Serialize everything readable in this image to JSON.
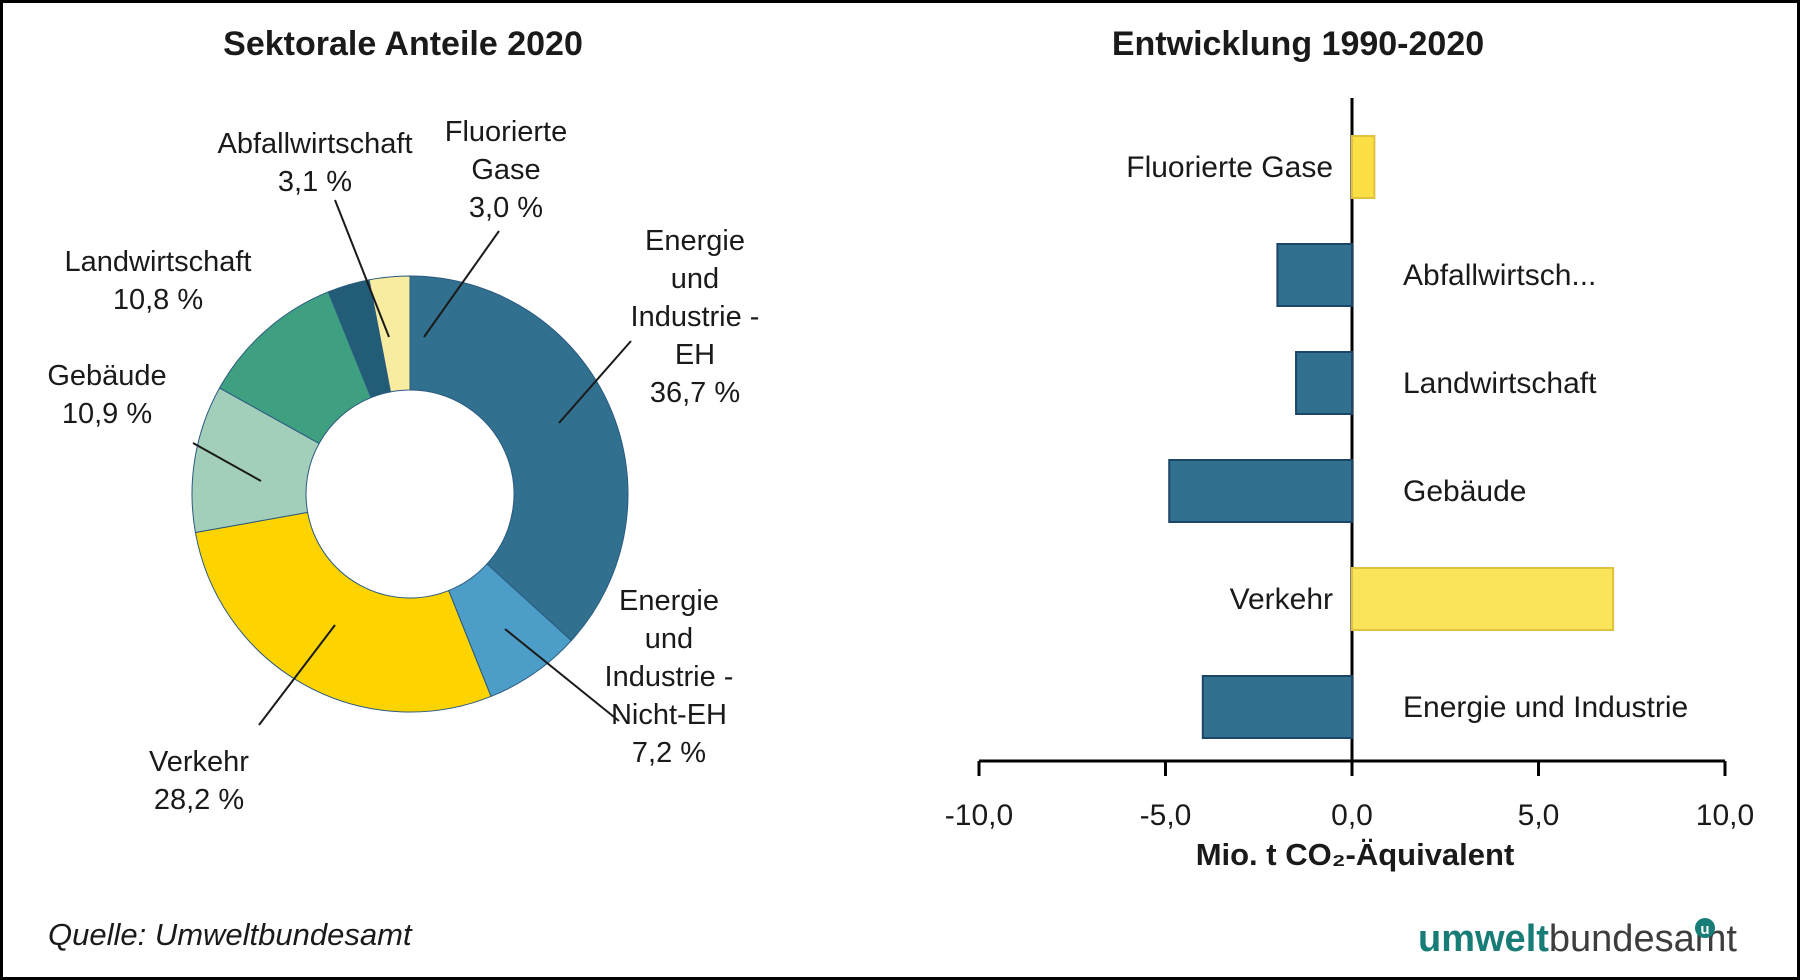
{
  "titles": {
    "left": "Sektorale Anteile 2020",
    "right": "Entwicklung 1990-2020"
  },
  "source": "Quelle: Umweltbundesamt",
  "logo": {
    "part1": "umwelt",
    "part2": "bundesamt",
    "badge": "u",
    "teal": "#177d76",
    "gray": "#3d3d3d"
  },
  "chart_data": [
    {
      "type": "pie",
      "subtype": "donut",
      "title": "Sektorale Anteile 2020",
      "unit": "%",
      "slices": [
        {
          "key": "eh",
          "label": "Energie und Industrie - EH",
          "value": 36.7,
          "pct_label": "36,7 %",
          "color": "#31708f",
          "callout_lines": [
            "Energie",
            "und",
            "Industrie -",
            "EH",
            "36,7 %"
          ]
        },
        {
          "key": "nicht_eh",
          "label": "Energie und Industrie - Nicht-EH",
          "value": 7.2,
          "pct_label": "7,2 %",
          "color": "#4c9dc8",
          "callout_lines": [
            "Energie",
            "und",
            "Industrie -",
            "Nicht-EH",
            "7,2 %"
          ]
        },
        {
          "key": "verkehr",
          "label": "Verkehr",
          "value": 28.2,
          "pct_label": "28,2 %",
          "color": "#fdd400",
          "callout_lines": [
            "Verkehr",
            "28,2 %"
          ]
        },
        {
          "key": "gebaeude",
          "label": "Gebäude",
          "value": 10.9,
          "pct_label": "10,9 %",
          "color": "#a3cfba",
          "callout_lines": [
            "Gebäude",
            "10,9 %"
          ]
        },
        {
          "key": "landwirt",
          "label": "Landwirtschaft",
          "value": 10.8,
          "pct_label": "10,8 %",
          "color": "#3fa081",
          "callout_lines": [
            "Landwirtschaft",
            "10,8 %"
          ]
        },
        {
          "key": "abfall",
          "label": "Abfallwirtschaft",
          "value": 3.1,
          "pct_label": "3,1 %",
          "color": "#235c77",
          "callout_lines": [
            "Abfallwirtschaft",
            "3,1 %"
          ]
        },
        {
          "key": "fluor",
          "label": "Fluorierte Gase",
          "value": 3.0,
          "pct_label": "3,0 %",
          "color": "#f7ec9f",
          "callout_lines": [
            "Fluorierte",
            "Gase",
            "3,0 %"
          ]
        }
      ]
    },
    {
      "type": "bar",
      "orientation": "horizontal",
      "title": "Entwicklung 1990-2020",
      "xlabel": "Mio. t CO₂-Äquivalent",
      "xlim": [
        -10,
        10
      ],
      "grid": false,
      "ticks": [
        {
          "v": -10,
          "label": "-10,0"
        },
        {
          "v": -5,
          "label": "-5,0"
        },
        {
          "v": 0,
          "label": "0,0"
        },
        {
          "v": 5,
          "label": "5,0"
        },
        {
          "v": 10,
          "label": "10,0"
        }
      ],
      "bars": [
        {
          "key": "fluor",
          "label": "Fluorierte Gase",
          "value": 0.6,
          "color": "#fcdf45",
          "stroke": "#dfc23e",
          "label_side": "left"
        },
        {
          "key": "abfall",
          "label": "Abfallwirtsch...",
          "value": -2.0,
          "color": "#31708f",
          "stroke": "#1c4668",
          "label_side": "right"
        },
        {
          "key": "landwirt",
          "label": "Landwirtschaft",
          "value": -1.5,
          "color": "#31708f",
          "stroke": "#1c4668",
          "label_side": "right"
        },
        {
          "key": "gebaeude",
          "label": "Gebäude",
          "value": -4.9,
          "color": "#31708f",
          "stroke": "#1c4668",
          "label_side": "right"
        },
        {
          "key": "verkehr",
          "label": "Verkehr",
          "value": 7.0,
          "color": "#fae45a",
          "stroke": "#dfc23e",
          "label_side": "left"
        },
        {
          "key": "energie",
          "label": "Energie und Industrie",
          "value": -4.0,
          "color": "#31708f",
          "stroke": "#1c4668",
          "label_side": "right"
        }
      ]
    }
  ]
}
